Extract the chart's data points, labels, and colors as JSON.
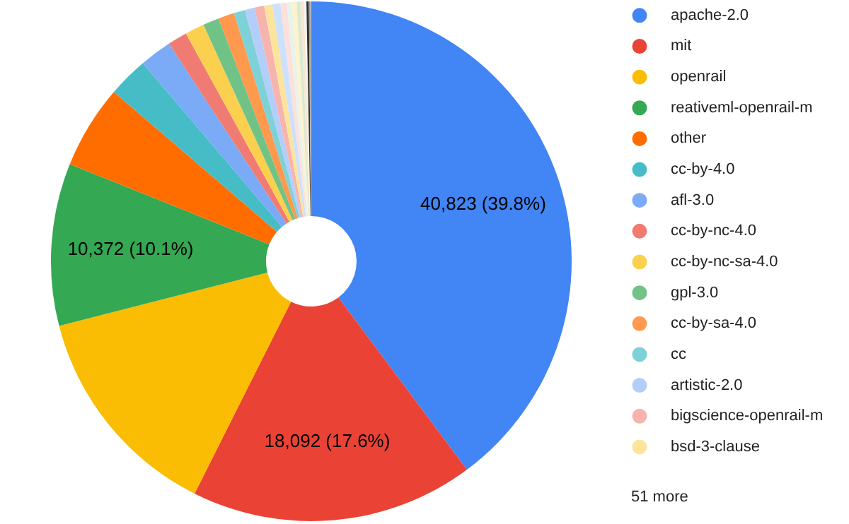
{
  "chart_data": {
    "type": "donut",
    "categories": [
      "apache-2.0",
      "mit",
      "openrail",
      "reativeml-openrail-m",
      "other",
      "cc-by-4.0",
      "afl-3.0",
      "cc-by-nc-4.0",
      "cc-by-nc-sa-4.0",
      "gpl-3.0",
      "cc-by-sa-4.0",
      "cc",
      "artistic-2.0",
      "bigscience-openrail-m",
      "bsd-3-clause",
      null,
      null,
      null,
      null,
      null,
      null,
      null,
      null,
      null,
      null
    ],
    "values": [
      39.8,
      17.6,
      13.6,
      10.1,
      5.2,
      2.5,
      2.0,
      1.2,
      1.2,
      1.0,
      1.0,
      0.7,
      0.6,
      0.6,
      0.5,
      0.5,
      0.4,
      0.3,
      0.3,
      0.25,
      0.2,
      0.15,
      0.15,
      0.1,
      0.05
    ],
    "colors": [
      "#4285f4",
      "#ea4335",
      "#fbbc04",
      "#34a853",
      "#ff6d01",
      "#46bdc6",
      "#7baaf7",
      "#f07b72",
      "#fcd04f",
      "#71c287",
      "#ff994d",
      "#7ed1d7",
      "#b3cefb",
      "#f7b4ae",
      "#fde49b",
      "#cde1fc",
      "#fbe0dc",
      "#e6f4ea",
      "#fff2cc",
      "#d9ead3",
      "#fce5cd",
      "#f3f3f3",
      "#333333",
      "#999999",
      "#cccccc"
    ],
    "value_labels": [
      "40,823 (39.8%)",
      "18,092 (17.6%)",
      null,
      "10,372 (10.1%)",
      null,
      null,
      null,
      null,
      null,
      null,
      null,
      null,
      null,
      null,
      null,
      null,
      null,
      null,
      null,
      null,
      null,
      null,
      null,
      null,
      null
    ],
    "legend": "right",
    "annotations": [
      "51 more"
    ]
  }
}
